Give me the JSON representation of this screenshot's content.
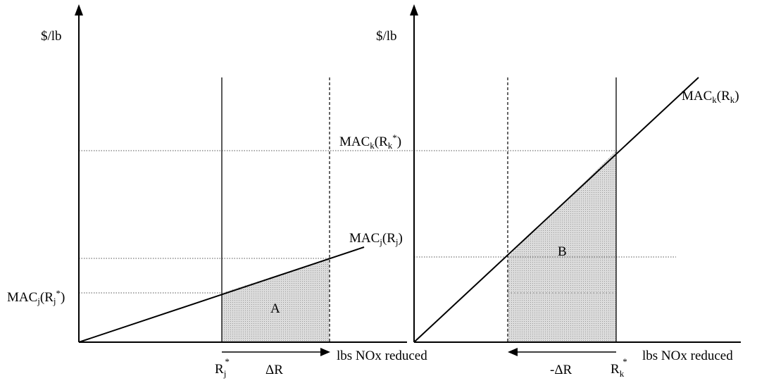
{
  "left_panel": {
    "y_axis_label": "$/lb",
    "x_axis_label": "lbs NOx reduced",
    "curve_label": {
      "base": "MAC",
      "sub1": "j",
      "mid": "(R",
      "sub2": "j",
      "end": ")"
    },
    "level_label": {
      "base": "MAC",
      "sub1": "j",
      "mid": "(R",
      "sub2": "j",
      "sup": "*",
      "end": ")"
    },
    "area_label": "A",
    "r_star_label": {
      "base": "R",
      "sub": "j",
      "sup": "*"
    },
    "delta_label": "ΔR"
  },
  "right_panel": {
    "y_axis_label": "$/lb",
    "x_axis_label": "lbs NOx  reduced",
    "curve_label": {
      "base": "MAC",
      "sub1": "k",
      "mid": "(R",
      "sub2": "k",
      "end": ")"
    },
    "level_label": {
      "base": "MAC",
      "sub1": "k",
      "mid": "(R",
      "sub2": "k",
      "sup": "*",
      "end": ")"
    },
    "area_label": "B",
    "r_star_label": {
      "base": "R",
      "sub": "k",
      "sup": "*"
    },
    "delta_label": "-ΔR"
  },
  "colors": {
    "line": "#000000",
    "shade": "#c8c8c8",
    "guide": "#555555"
  }
}
